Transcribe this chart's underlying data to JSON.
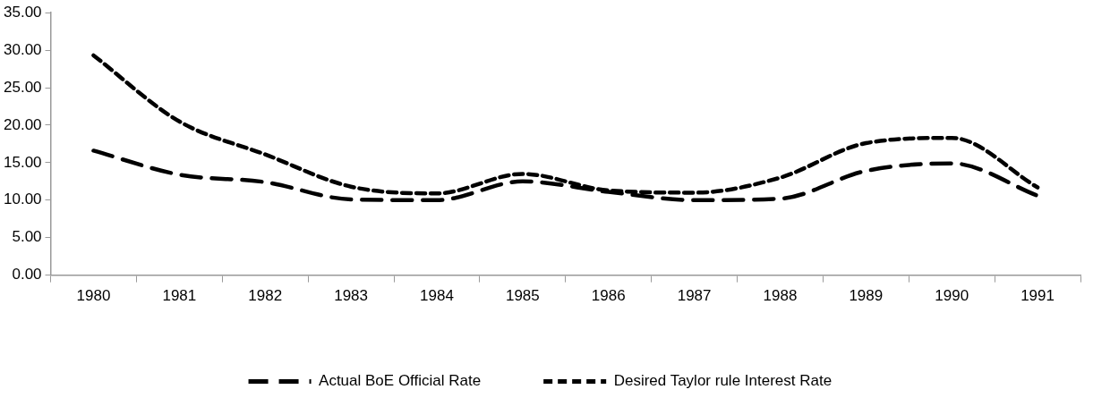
{
  "chart_data": {
    "type": "line",
    "categories": [
      "1980",
      "1981",
      "1982",
      "1983",
      "1984",
      "1985",
      "1986",
      "1987",
      "1988",
      "1989",
      "1990",
      "1991"
    ],
    "series": [
      {
        "name": "Actual BoE Official Rate",
        "color": "#000000",
        "line_style": "dashed",
        "values": [
          16.6,
          13.4,
          12.4,
          10.1,
          10.0,
          12.5,
          11.1,
          10.0,
          10.2,
          13.9,
          14.9,
          10.6
        ]
      },
      {
        "name": "Desired Taylor rule Interest Rate",
        "color": "#000000",
        "line_style": "dashed",
        "values": [
          29.3,
          20.5,
          16.1,
          11.8,
          10.9,
          13.5,
          11.3,
          11.0,
          13.0,
          17.6,
          18.3,
          11.7
        ]
      }
    ],
    "ylim": [
      0,
      35
    ],
    "yticks": [
      {
        "value": 0,
        "label": "0.00"
      },
      {
        "value": 5,
        "label": "5.00"
      },
      {
        "value": 10,
        "label": "10.00"
      },
      {
        "value": 15,
        "label": "15.00"
      },
      {
        "value": 20,
        "label": "20.00"
      },
      {
        "value": 25,
        "label": "25.00"
      },
      {
        "value": 30,
        "label": "30.00"
      },
      {
        "value": 35,
        "label": "35.00"
      }
    ],
    "grid": false,
    "legend": "bottom",
    "marker": "none"
  }
}
